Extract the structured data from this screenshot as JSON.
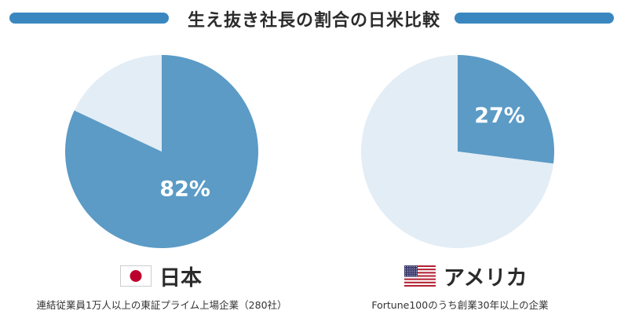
{
  "title": "生え抜き社長の割合の日米比較",
  "colors": {
    "accent": "#5b9bc6",
    "light": "#e3edf5",
    "title_bar": "#3a87c0",
    "flag_red": "#bc002d",
    "us_red": "#b22234",
    "us_blue": "#3c3b6e"
  },
  "chart_data": [
    {
      "type": "pie",
      "title": "日本",
      "slices": [
        {
          "label": "82%",
          "value": 82,
          "color": "#5b9bc6"
        },
        {
          "label": "",
          "value": 18,
          "color": "#e3edf5"
        }
      ],
      "caption": "連結従業員1万人以上の東証プライム上場企業（280社）"
    },
    {
      "type": "pie",
      "title": "アメリカ",
      "slices": [
        {
          "label": "27%",
          "value": 27,
          "color": "#5b9bc6"
        },
        {
          "label": "",
          "value": 73,
          "color": "#e3edf5"
        }
      ],
      "caption": "Fortune100のうち創業30年以上の企業"
    }
  ],
  "japan": {
    "name": "日本",
    "flag_icon": "japan-flag-icon",
    "percent_label": "82%",
    "caption": "連結従業員1万人以上の東証プライム上場企業（280社）"
  },
  "usa": {
    "name": "アメリカ",
    "flag_icon": "usa-flag-icon",
    "percent_label": "27%",
    "caption": "Fortune100のうち創業30年以上の企業"
  }
}
